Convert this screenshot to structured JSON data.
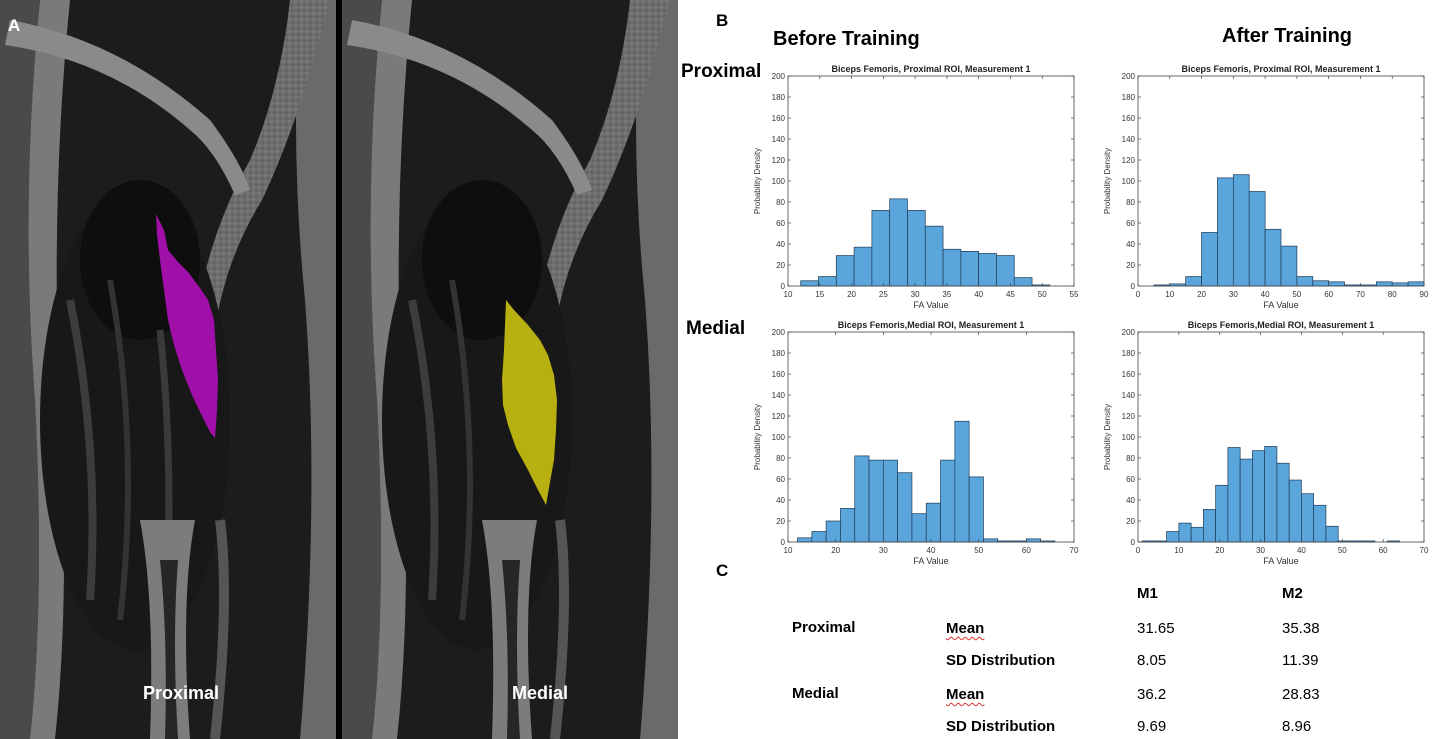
{
  "panel_a": {
    "letter": "A",
    "captions": {
      "left": "Proximal",
      "right": "Medial"
    },
    "roi_colors": {
      "proximal": "#a010a8",
      "medial": "#b8b010"
    }
  },
  "panel_b": {
    "letter": "B",
    "col_headers": [
      "Before Training",
      "After Training"
    ],
    "row_headers": [
      "Proximal",
      "Medial"
    ]
  },
  "chart_data": [
    {
      "type": "bar",
      "title": "Biceps Femoris, Proximal ROI, Measurement 1",
      "xlabel": "FA Value",
      "ylabel": "Probability Density",
      "xlim": [
        10,
        55
      ],
      "ylim": [
        0,
        200
      ],
      "xticks": [
        10,
        15,
        20,
        25,
        30,
        35,
        40,
        45,
        50,
        55
      ],
      "yticks": [
        0,
        20,
        40,
        60,
        80,
        100,
        120,
        140,
        160,
        180,
        200
      ],
      "bin_edges": [
        12,
        14.8,
        17.6,
        20.4,
        23.2,
        26,
        28.8,
        31.6,
        34.4,
        37.2,
        40,
        42.8,
        45.6,
        48.4,
        51.2,
        54
      ],
      "values": [
        5,
        9,
        29,
        37,
        72,
        83,
        72,
        57,
        35,
        33,
        31,
        29,
        8,
        1,
        0
      ]
    },
    {
      "type": "bar",
      "title": "Biceps Femoris, Proximal ROI, Measurement 1",
      "xlabel": "FA Value",
      "ylabel": "Probability Density",
      "xlim": [
        0,
        90
      ],
      "ylim": [
        0,
        200
      ],
      "xticks": [
        0,
        10,
        20,
        30,
        40,
        50,
        60,
        70,
        80,
        90
      ],
      "yticks": [
        0,
        20,
        40,
        60,
        80,
        100,
        120,
        140,
        160,
        180,
        200
      ],
      "bin_edges": [
        5,
        10,
        15,
        20,
        25,
        30,
        35,
        40,
        45,
        50,
        55,
        60,
        65,
        70,
        75,
        80,
        85,
        90
      ],
      "values": [
        1,
        2,
        9,
        51,
        103,
        106,
        90,
        54,
        38,
        9,
        5,
        4,
        1,
        1,
        4,
        3,
        4
      ]
    },
    {
      "type": "bar",
      "title": "Biceps Femoris,Medial ROI, Measurement 1",
      "xlabel": "FA Value",
      "ylabel": "Probability Density",
      "xlim": [
        10,
        70
      ],
      "ylim": [
        0,
        200
      ],
      "xticks": [
        10,
        20,
        30,
        40,
        50,
        60,
        70
      ],
      "yticks": [
        0,
        20,
        40,
        60,
        80,
        100,
        120,
        140,
        160,
        180,
        200
      ],
      "bin_edges": [
        12,
        15,
        18,
        21,
        24,
        27,
        30,
        33,
        36,
        39,
        42,
        45,
        48,
        51,
        54,
        57,
        60,
        63,
        66,
        69
      ],
      "values": [
        4,
        10,
        20,
        32,
        82,
        78,
        78,
        66,
        27,
        37,
        78,
        115,
        62,
        3,
        1,
        1,
        3,
        1,
        0
      ]
    },
    {
      "type": "bar",
      "title": "Biceps Femoris,Medial ROI, Measurement 1",
      "xlabel": "FA Value",
      "ylabel": "Probability Density",
      "xlim": [
        0,
        70
      ],
      "ylim": [
        0,
        200
      ],
      "xticks": [
        0,
        10,
        20,
        30,
        40,
        50,
        60,
        70
      ],
      "yticks": [
        0,
        20,
        40,
        60,
        80,
        100,
        120,
        140,
        160,
        180,
        200
      ],
      "bin_edges": [
        1,
        4,
        7,
        10,
        13,
        16,
        19,
        22,
        25,
        28,
        31,
        34,
        37,
        40,
        43,
        46,
        49,
        52,
        55,
        58,
        61,
        64
      ],
      "values": [
        1,
        1,
        10,
        18,
        14,
        31,
        54,
        90,
        79,
        87,
        91,
        75,
        59,
        46,
        35,
        15,
        1,
        1,
        1,
        0,
        1
      ]
    }
  ],
  "panel_c": {
    "letter": "C",
    "columns": [
      "M1",
      "M2"
    ],
    "rows": [
      {
        "region": "Proximal",
        "metric": "Mean",
        "m1": "31.65",
        "m2": "35.38"
      },
      {
        "region": "",
        "metric": "SD Distribution",
        "m1": "8.05",
        "m2": "11.39"
      },
      {
        "region": "Medial",
        "metric": "Mean",
        "m1": "36.2",
        "m2": "28.83"
      },
      {
        "region": "",
        "metric": "SD Distribution",
        "m1": "9.69",
        "m2": "8.96"
      }
    ]
  }
}
